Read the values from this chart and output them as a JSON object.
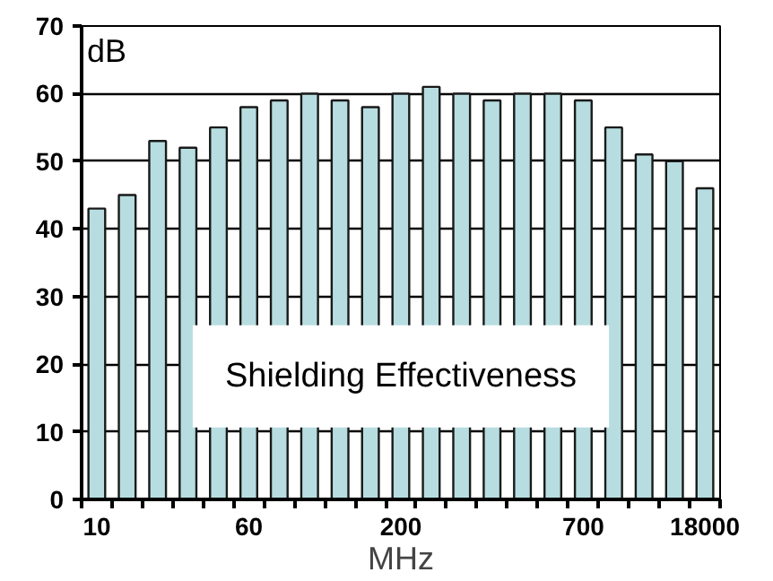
{
  "chart_data": {
    "type": "bar",
    "categories": [
      "10",
      null,
      null,
      null,
      null,
      "60",
      null,
      null,
      null,
      null,
      "200",
      null,
      null,
      null,
      null,
      null,
      "700",
      null,
      null,
      null,
      "18000"
    ],
    "values": [
      43,
      45,
      53,
      52,
      55,
      58,
      59,
      60,
      59,
      58,
      60,
      61,
      60,
      59,
      60,
      60,
      59,
      55,
      51,
      50,
      46
    ],
    "color": "#b7dde0",
    "ylim": [
      0,
      70
    ],
    "yticks": [
      0,
      10,
      20,
      30,
      40,
      50,
      60,
      70
    ],
    "xlabel": "MHz",
    "ylabel": "dB",
    "annotations": [
      "Shielding Effectiveness"
    ],
    "grid": "y"
  }
}
